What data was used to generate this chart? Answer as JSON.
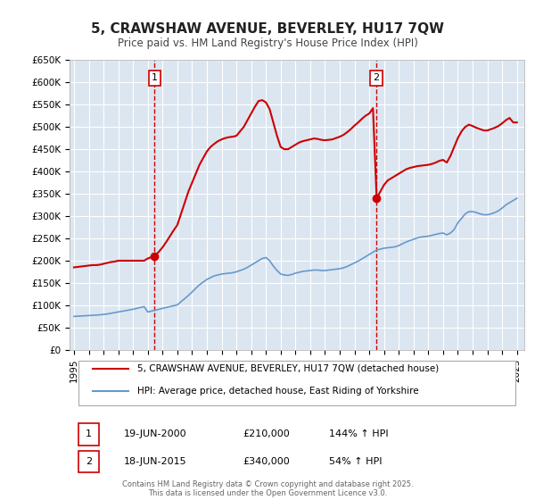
{
  "title": "5, CRAWSHAW AVENUE, BEVERLEY, HU17 7QW",
  "subtitle": "Price paid vs. HM Land Registry's House Price Index (HPI)",
  "hpi_color": "#6699cc",
  "price_color": "#cc0000",
  "vline_color": "#cc0000",
  "bg_color": "#ffffff",
  "plot_bg_color": "#dce6f1",
  "grid_color": "#ffffff",
  "ylim": [
    0,
    650000
  ],
  "xlim_start": 1995.0,
  "xlim_end": 2025.5,
  "yticks": [
    0,
    50000,
    100000,
    150000,
    200000,
    250000,
    300000,
    350000,
    400000,
    450000,
    500000,
    550000,
    600000,
    650000
  ],
  "ytick_labels": [
    "£0",
    "£50K",
    "£100K",
    "£150K",
    "£200K",
    "£250K",
    "£300K",
    "£350K",
    "£400K",
    "£450K",
    "£500K",
    "£550K",
    "£600K",
    "£650K"
  ],
  "xticks": [
    1995,
    1996,
    1997,
    1998,
    1999,
    2000,
    2001,
    2002,
    2003,
    2004,
    2005,
    2006,
    2007,
    2008,
    2009,
    2010,
    2011,
    2012,
    2013,
    2014,
    2015,
    2016,
    2017,
    2018,
    2019,
    2020,
    2021,
    2022,
    2023,
    2024,
    2025
  ],
  "sale1_x": 2000.46,
  "sale1_y": 210000,
  "sale1_label": "1",
  "sale2_x": 2015.46,
  "sale2_y": 340000,
  "sale2_label": "2",
  "legend_label1": "5, CRAWSHAW AVENUE, BEVERLEY, HU17 7QW (detached house)",
  "legend_label2": "HPI: Average price, detached house, East Riding of Yorkshire",
  "table_row1": [
    "1",
    "19-JUN-2000",
    "£210,000",
    "144% ↑ HPI"
  ],
  "table_row2": [
    "2",
    "18-JUN-2015",
    "£340,000",
    "54% ↑ HPI"
  ],
  "footer": "Contains HM Land Registry data © Crown copyright and database right 2025.\nThis data is licensed under the Open Government Licence v3.0.",
  "hpi_data_x": [
    1995.0,
    1995.25,
    1995.5,
    1995.75,
    1996.0,
    1996.25,
    1996.5,
    1996.75,
    1997.0,
    1997.25,
    1997.5,
    1997.75,
    1998.0,
    1998.25,
    1998.5,
    1998.75,
    1999.0,
    1999.25,
    1999.5,
    1999.75,
    2000.0,
    2000.25,
    2000.5,
    2000.75,
    2001.0,
    2001.25,
    2001.5,
    2001.75,
    2002.0,
    2002.25,
    2002.5,
    2002.75,
    2003.0,
    2003.25,
    2003.5,
    2003.75,
    2004.0,
    2004.25,
    2004.5,
    2004.75,
    2005.0,
    2005.25,
    2005.5,
    2005.75,
    2006.0,
    2006.25,
    2006.5,
    2006.75,
    2007.0,
    2007.25,
    2007.5,
    2007.75,
    2008.0,
    2008.25,
    2008.5,
    2008.75,
    2009.0,
    2009.25,
    2009.5,
    2009.75,
    2010.0,
    2010.25,
    2010.5,
    2010.75,
    2011.0,
    2011.25,
    2011.5,
    2011.75,
    2012.0,
    2012.25,
    2012.5,
    2012.75,
    2013.0,
    2013.25,
    2013.5,
    2013.75,
    2014.0,
    2014.25,
    2014.5,
    2014.75,
    2015.0,
    2015.25,
    2015.5,
    2015.75,
    2016.0,
    2016.25,
    2016.5,
    2016.75,
    2017.0,
    2017.25,
    2017.5,
    2017.75,
    2018.0,
    2018.25,
    2018.5,
    2018.75,
    2019.0,
    2019.25,
    2019.5,
    2019.75,
    2020.0,
    2020.25,
    2020.5,
    2020.75,
    2021.0,
    2021.25,
    2021.5,
    2021.75,
    2022.0,
    2022.25,
    2022.5,
    2022.75,
    2023.0,
    2023.25,
    2023.5,
    2023.75,
    2024.0,
    2024.25,
    2024.5,
    2024.75,
    2025.0
  ],
  "hpi_data_y": [
    75000,
    75500,
    76000,
    76500,
    77000,
    77500,
    78000,
    78500,
    79500,
    80500,
    82000,
    83500,
    85000,
    86500,
    88000,
    89500,
    91000,
    93000,
    95000,
    97000,
    85000,
    87000,
    89000,
    91000,
    93000,
    95000,
    97000,
    99000,
    101000,
    108000,
    115000,
    122000,
    130000,
    138000,
    146000,
    152000,
    158000,
    162000,
    166000,
    168000,
    170000,
    171000,
    172000,
    173000,
    175000,
    178000,
    181000,
    185000,
    190000,
    195000,
    200000,
    205000,
    207000,
    200000,
    188000,
    178000,
    170000,
    168000,
    167000,
    169000,
    172000,
    174000,
    176000,
    177000,
    178000,
    179000,
    179000,
    178000,
    178000,
    179000,
    180000,
    181000,
    182000,
    184000,
    187000,
    191000,
    195000,
    199000,
    204000,
    209000,
    214000,
    219000,
    224000,
    226000,
    228000,
    229000,
    230000,
    231000,
    234000,
    238000,
    242000,
    245000,
    248000,
    251000,
    253000,
    254000,
    255000,
    257000,
    259000,
    261000,
    262000,
    258000,
    262000,
    270000,
    285000,
    295000,
    305000,
    310000,
    310000,
    308000,
    305000,
    303000,
    303000,
    305000,
    308000,
    312000,
    318000,
    325000,
    330000,
    335000,
    340000
  ],
  "price_data_x": [
    1995.0,
    1995.25,
    1995.5,
    1995.75,
    1996.0,
    1996.25,
    1996.5,
    1996.75,
    1997.0,
    1997.25,
    1997.5,
    1997.75,
    1998.0,
    1998.25,
    1998.5,
    1998.75,
    1999.0,
    1999.25,
    1999.5,
    1999.75,
    2000.0,
    2000.25,
    2000.5,
    2000.75,
    2001.0,
    2001.25,
    2001.5,
    2001.75,
    2002.0,
    2002.25,
    2002.5,
    2002.75,
    2003.0,
    2003.25,
    2003.5,
    2003.75,
    2004.0,
    2004.25,
    2004.5,
    2004.75,
    2005.0,
    2005.25,
    2005.5,
    2005.75,
    2006.0,
    2006.25,
    2006.5,
    2006.75,
    2007.0,
    2007.25,
    2007.5,
    2007.75,
    2008.0,
    2008.25,
    2008.5,
    2008.75,
    2009.0,
    2009.25,
    2009.5,
    2009.75,
    2010.0,
    2010.25,
    2010.5,
    2010.75,
    2011.0,
    2011.25,
    2011.5,
    2011.75,
    2012.0,
    2012.25,
    2012.5,
    2012.75,
    2013.0,
    2013.25,
    2013.5,
    2013.75,
    2014.0,
    2014.25,
    2014.5,
    2014.75,
    2015.0,
    2015.25,
    2015.5,
    2015.75,
    2016.0,
    2016.25,
    2016.5,
    2016.75,
    2017.0,
    2017.25,
    2017.5,
    2017.75,
    2018.0,
    2018.25,
    2018.5,
    2018.75,
    2019.0,
    2019.25,
    2019.5,
    2019.75,
    2020.0,
    2020.25,
    2020.5,
    2020.75,
    2021.0,
    2021.25,
    2021.5,
    2021.75,
    2022.0,
    2022.25,
    2022.5,
    2022.75,
    2023.0,
    2023.25,
    2023.5,
    2023.75,
    2024.0,
    2024.25,
    2024.5,
    2024.75,
    2025.0
  ],
  "price_data_y": [
    185000,
    186000,
    187000,
    188000,
    189000,
    190000,
    190000,
    191000,
    193000,
    195000,
    197000,
    198000,
    200000,
    200000,
    200000,
    200000,
    200000,
    200000,
    200000,
    200000,
    205000,
    208000,
    212000,
    220000,
    230000,
    242000,
    255000,
    268000,
    280000,
    305000,
    330000,
    355000,
    375000,
    395000,
    415000,
    430000,
    445000,
    455000,
    462000,
    468000,
    472000,
    475000,
    477000,
    478000,
    480000,
    490000,
    500000,
    515000,
    530000,
    545000,
    558000,
    560000,
    555000,
    540000,
    510000,
    480000,
    455000,
    450000,
    450000,
    455000,
    460000,
    465000,
    468000,
    470000,
    472000,
    474000,
    473000,
    471000,
    470000,
    471000,
    472000,
    475000,
    478000,
    482000,
    488000,
    495000,
    503000,
    510000,
    518000,
    525000,
    530000,
    542000,
    340000,
    355000,
    370000,
    380000,
    385000,
    390000,
    395000,
    400000,
    405000,
    408000,
    410000,
    412000,
    413000,
    414000,
    415000,
    417000,
    420000,
    424000,
    426000,
    420000,
    435000,
    455000,
    475000,
    490000,
    500000,
    505000,
    502000,
    498000,
    495000,
    492000,
    492000,
    495000,
    498000,
    502000,
    508000,
    515000,
    520000,
    510000,
    510000
  ]
}
